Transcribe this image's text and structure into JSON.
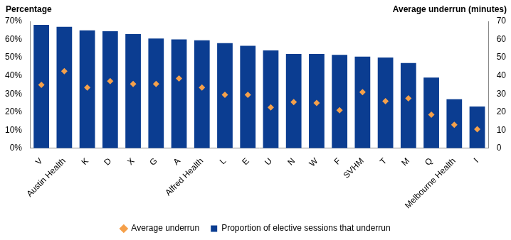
{
  "chart_data": {
    "type": "bar",
    "ylabel": "Percentage",
    "y2label": "Average underrun (minutes)",
    "categories": [
      "V",
      "Austin Health",
      "K",
      "D",
      "X",
      "G",
      "A",
      "Alfred Health",
      "L",
      "E",
      "U",
      "N",
      "W",
      "F",
      "SVHM",
      "T",
      "M",
      "Q",
      "Melbourne Health",
      "I"
    ],
    "series": [
      {
        "name": "Proportion of elective sessions that underrun",
        "type": "bar",
        "color": "#0b3d91",
        "values": [
          68,
          67,
          65,
          64.5,
          63,
          60.5,
          60,
          59.5,
          58,
          56.5,
          54,
          52,
          52,
          51.5,
          50.5,
          50,
          47,
          39,
          27,
          23
        ]
      },
      {
        "name": "Average underrun",
        "type": "scatter",
        "marker": "diamond",
        "axis": "y2",
        "color": "#f5a04a",
        "values": [
          35,
          42.5,
          33.5,
          37,
          35.5,
          35.5,
          38.5,
          33.5,
          29.5,
          29.5,
          22.5,
          25.5,
          25,
          21,
          31,
          26,
          27.5,
          18.5,
          13,
          10.5
        ]
      }
    ],
    "ylim": [
      0,
      70
    ],
    "yticks": [
      {
        "value": 0,
        "label": "0%"
      },
      {
        "value": 10,
        "label": "10%"
      },
      {
        "value": 20,
        "label": "20%"
      },
      {
        "value": 30,
        "label": "30%"
      },
      {
        "value": 40,
        "label": "40%"
      },
      {
        "value": 50,
        "label": "50%"
      },
      {
        "value": 60,
        "label": "60%"
      },
      {
        "value": 70,
        "label": "70%"
      }
    ],
    "y2lim": [
      0,
      70
    ],
    "y2ticks": [
      0,
      10,
      20,
      30,
      40,
      50,
      60,
      70
    ],
    "grid": false,
    "legend": "bottom"
  }
}
